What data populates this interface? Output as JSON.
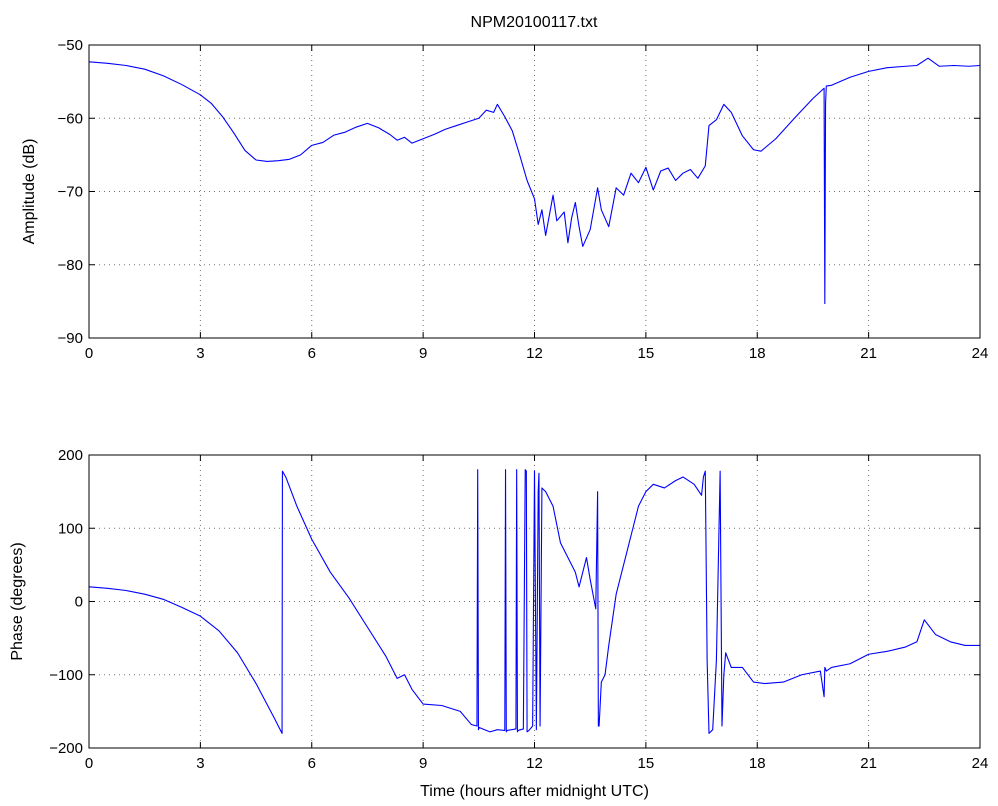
{
  "title": "NPM20100117.txt",
  "chart_data": [
    {
      "type": "line",
      "xlabel": "",
      "ylabel": "Amplitude (dB)",
      "xlim": [
        0,
        24
      ],
      "ylim": [
        -90,
        -50
      ],
      "x_ticks": [
        0,
        3,
        6,
        9,
        12,
        15,
        18,
        21,
        24
      ],
      "y_ticks": [
        -90,
        -80,
        -70,
        -60,
        -50
      ],
      "grid": true,
      "color": "#0000ff",
      "series": [
        {
          "x": [
            0,
            0.5,
            1,
            1.5,
            2,
            2.5,
            3,
            3.3,
            3.6,
            3.9,
            4.2,
            4.5,
            4.8,
            5.1,
            5.4,
            5.7,
            6,
            6.3,
            6.6,
            6.9,
            7.2,
            7.5,
            7.8,
            8.1,
            8.3,
            8.5,
            8.7,
            9,
            9.3,
            9.6,
            9.9,
            10.2,
            10.5,
            10.7,
            10.9,
            11.0,
            11.2,
            11.4,
            11.6,
            11.8,
            12.0,
            12.1,
            12.2,
            12.3,
            12.5,
            12.6,
            12.8,
            12.9,
            13.0,
            13.1,
            13.2,
            13.3,
            13.5,
            13.7,
            13.8,
            14.0,
            14.2,
            14.4,
            14.6,
            14.8,
            15.0,
            15.2,
            15.4,
            15.6,
            15.8,
            16.0,
            16.2,
            16.4,
            16.6,
            16.7,
            16.9,
            17.1,
            17.3,
            17.6,
            17.9,
            18.1,
            18.5,
            19,
            19.5,
            19.8,
            19.82,
            19.84,
            19.86,
            20,
            20.5,
            21,
            21.5,
            22,
            22.3,
            22.6,
            22.9,
            23.3,
            23.7,
            24
          ],
          "y": [
            -52.3,
            -52.5,
            -52.8,
            -53.3,
            -54.2,
            -55.4,
            -56.8,
            -58.0,
            -59.8,
            -62,
            -64.4,
            -65.7,
            -65.9,
            -65.8,
            -65.6,
            -65,
            -63.7,
            -63.3,
            -62.3,
            -61.9,
            -61.2,
            -60.7,
            -61.3,
            -62.2,
            -63.0,
            -62.6,
            -63.4,
            -62.8,
            -62.2,
            -61.5,
            -61.0,
            -60.5,
            -60.0,
            -58.9,
            -59.2,
            -58.1,
            -59.8,
            -61.7,
            -65,
            -68.5,
            -71,
            -74.5,
            -72.5,
            -76,
            -70.5,
            -74,
            -72.8,
            -77,
            -73.6,
            -71.5,
            -74.8,
            -77.5,
            -75.2,
            -69.5,
            -72.5,
            -74.8,
            -69.5,
            -70.5,
            -67.5,
            -68.8,
            -66.7,
            -69.8,
            -67.2,
            -66.8,
            -68.5,
            -67.5,
            -67,
            -68.2,
            -66.5,
            -61,
            -60.2,
            -58.1,
            -59.2,
            -62.4,
            -64.3,
            -64.5,
            -62.8,
            -60,
            -57.3,
            -55.9,
            -85.3,
            -58,
            -55.6,
            -55.5,
            -54.4,
            -53.6,
            -53.1,
            -52.9,
            -52.8,
            -51.8,
            -52.9,
            -52.8,
            -52.9,
            -52.8
          ]
        }
      ]
    },
    {
      "type": "line",
      "xlabel": "Time (hours after midnight UTC)",
      "ylabel": "Phase (degrees)",
      "xlim": [
        0,
        24
      ],
      "ylim": [
        -200,
        200
      ],
      "x_ticks": [
        0,
        3,
        6,
        9,
        12,
        15,
        18,
        21,
        24
      ],
      "y_ticks": [
        -200,
        -100,
        0,
        100,
        200
      ],
      "grid": true,
      "color": "#0000ff",
      "series": [
        {
          "x": [
            0,
            0.5,
            1,
            1.5,
            2,
            2.5,
            3,
            3.5,
            4,
            4.5,
            5,
            5.2,
            5.21,
            5.3,
            5.6,
            6,
            6.5,
            7,
            7.5,
            8,
            8.3,
            8.5,
            8.7,
            9,
            9.5,
            10,
            10.3,
            10.45,
            10.47,
            10.49,
            10.51,
            10.8,
            11.0,
            11.2,
            11.22,
            11.24,
            11.26,
            11.5,
            11.52,
            11.54,
            11.56,
            11.7,
            11.75,
            11.78,
            11.8,
            11.85,
            11.95,
            12.0,
            12.05,
            12.1,
            12.12,
            12.15,
            12.2,
            12.3,
            12.5,
            12.7,
            13.0,
            13.1,
            13.2,
            13.4,
            13.5,
            13.65,
            13.7,
            13.72,
            13.74,
            13.8,
            13.9,
            14.0,
            14.2,
            14.5,
            14.8,
            15.0,
            15.2,
            15.5,
            15.8,
            16.0,
            16.3,
            16.5,
            16.55,
            16.6,
            16.65,
            16.7,
            16.8,
            16.9,
            17.0,
            17.05,
            17.1,
            17.15,
            17.3,
            17.6,
            17.9,
            18.2,
            18.7,
            19.2,
            19.7,
            19.8,
            19.82,
            19.84,
            19.86,
            20.0,
            20.5,
            21,
            21.5,
            22,
            22.3,
            22.5,
            22.8,
            23.2,
            23.6,
            24
          ],
          "y": [
            20,
            18,
            15,
            10,
            3,
            -8,
            -20,
            -40,
            -70,
            -112,
            -160,
            -180,
            178,
            170,
            130,
            85,
            40,
            5,
            -35,
            -75,
            -105,
            -100,
            -120,
            -140,
            -142,
            -150,
            -168,
            -170,
            180,
            -175,
            -172,
            -178,
            -175,
            -176,
            180,
            -178,
            -176,
            -174,
            180,
            -178,
            -176,
            -174,
            180,
            178,
            -178,
            -176,
            -170,
            178,
            -175,
            150,
            175,
            -170,
            155,
            150,
            130,
            80,
            50,
            40,
            20,
            60,
            30,
            -10,
            150,
            -170,
            -170,
            -110,
            -100,
            -60,
            10,
            70,
            130,
            150,
            160,
            155,
            165,
            170,
            160,
            145,
            170,
            178,
            -80,
            -180,
            -175,
            -80,
            178,
            -170,
            -100,
            -70,
            -90,
            -90,
            -110,
            -112,
            -110,
            -100,
            -95,
            -130,
            -90,
            -92,
            -95,
            -90,
            -85,
            -72,
            -68,
            -62,
            -55,
            -25,
            -45,
            -55,
            -60,
            -60
          ]
        }
      ]
    }
  ]
}
